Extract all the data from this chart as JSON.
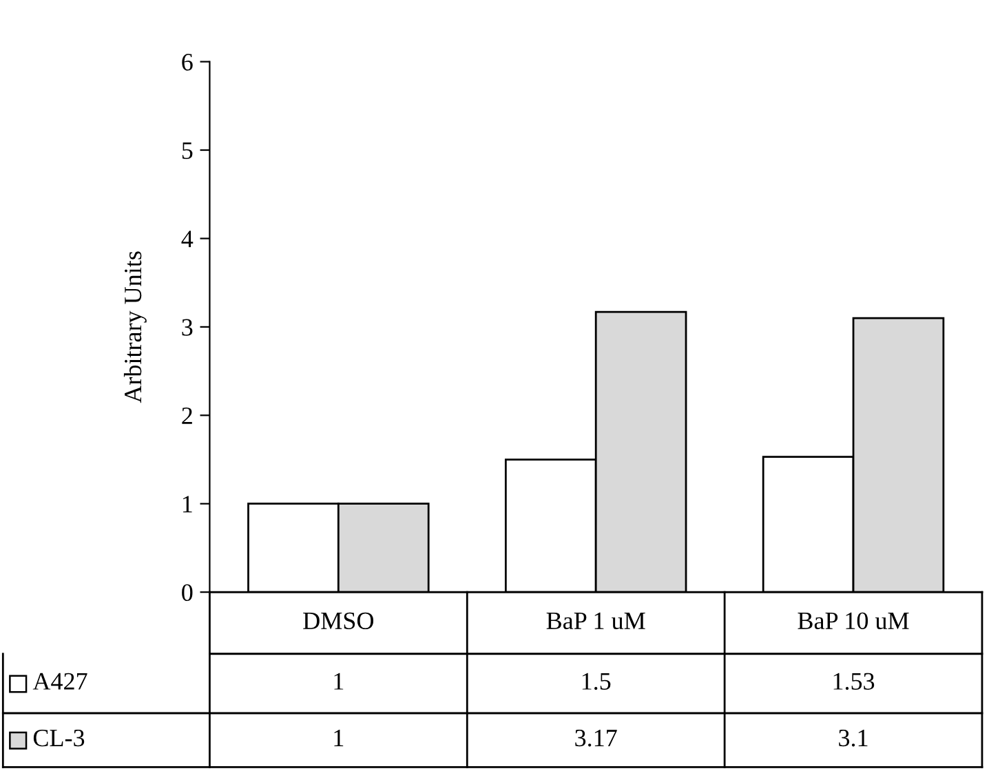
{
  "chart_data": {
    "type": "bar",
    "ylabel": "Arbitrary Units",
    "categories": [
      "DMSO",
      "BaP 1 uM",
      "BaP 10 uM"
    ],
    "series": [
      {
        "name": "A427",
        "color": "#ffffff",
        "values": [
          1,
          1.5,
          1.53
        ]
      },
      {
        "name": "CL-3",
        "color": "#d9d9d9",
        "values": [
          1,
          3.17,
          3.1
        ]
      }
    ],
    "ylim": [
      0,
      6
    ],
    "yticks": [
      0,
      1,
      2,
      3,
      4,
      5,
      6
    ],
    "grid": false,
    "legend": "bottom",
    "data_labels": true
  }
}
